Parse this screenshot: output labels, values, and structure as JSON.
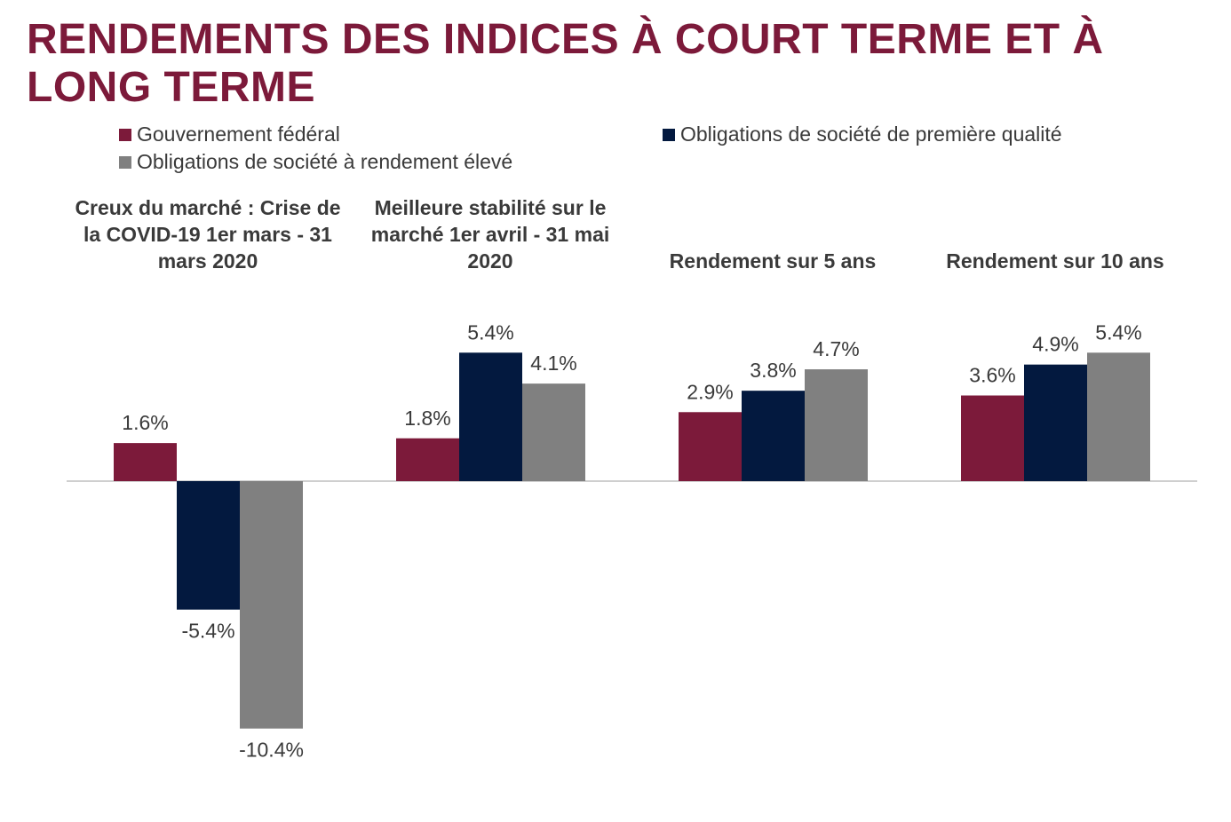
{
  "chart_data": {
    "type": "bar",
    "title": "RENDEMENTS DES INDICES À COURT TERME ET À LONG TERME",
    "categories": [
      "Creux du marché : Crise de la COVID-19 1er mars - 31 mars 2020",
      "Meilleure stabilité sur le marché 1er avril - 31 mai 2020",
      "Rendement sur 5 ans",
      "Rendement sur 10 ans"
    ],
    "series": [
      {
        "name": "Gouvernement fédéral",
        "color": "#7c1a3a",
        "values": [
          1.6,
          1.8,
          2.9,
          3.6
        ],
        "labels": [
          "1.6%",
          "1.8%",
          "2.9%",
          "3.6%"
        ]
      },
      {
        "name": "Obligations de société de première qualité",
        "color": "#03193f",
        "values": [
          -5.4,
          5.4,
          3.8,
          4.9
        ],
        "labels": [
          "-5.4%",
          "5.4%",
          "3.8%",
          "4.9%"
        ]
      },
      {
        "name": "Obligations de société à rendement élevé",
        "color": "#808080",
        "values": [
          -10.4,
          4.1,
          4.7,
          5.4
        ],
        "labels": [
          "-10.4%",
          "4.1%",
          "4.7%",
          "5.4%"
        ]
      }
    ],
    "xlabel": "",
    "ylabel": "",
    "ylim": [
      -10.4,
      5.4
    ],
    "grid": false,
    "legend_position": "top"
  }
}
